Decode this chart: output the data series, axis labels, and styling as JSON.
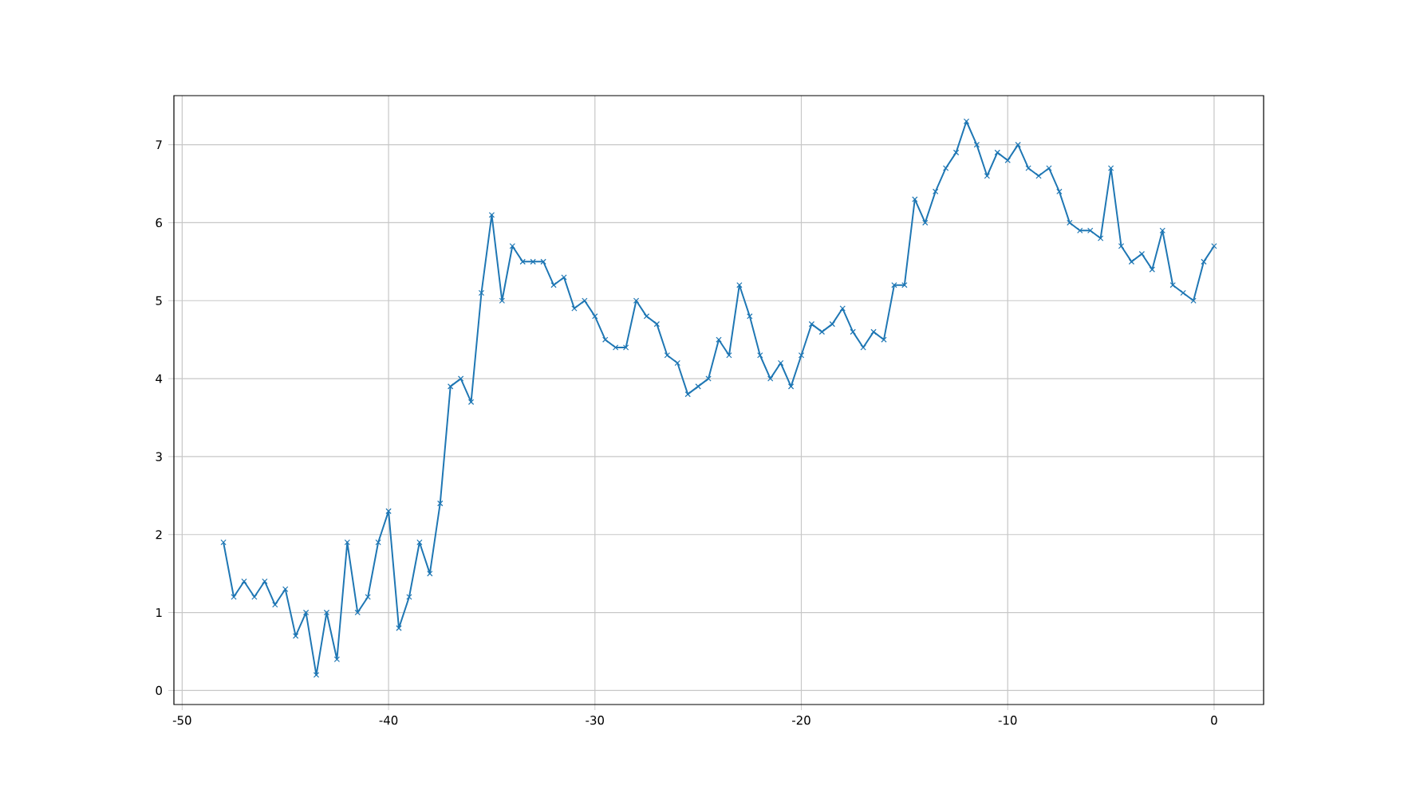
{
  "chart_data": {
    "type": "line",
    "x": [
      -48,
      -47.5,
      -47,
      -46.5,
      -46,
      -45.5,
      -45,
      -44.5,
      -44,
      -43.5,
      -43,
      -42.5,
      -42,
      -41.5,
      -41,
      -40.5,
      -40,
      -39.5,
      -39,
      -38.5,
      -38,
      -37.5,
      -37,
      -36.5,
      -36,
      -35.5,
      -35,
      -34.5,
      -34,
      -33.5,
      -33,
      -32.5,
      -32,
      -31.5,
      -31,
      -30.5,
      -30,
      -29.5,
      -29,
      -28.5,
      -28,
      -27.5,
      -27,
      -26.5,
      -26,
      -25.5,
      -25,
      -24.5,
      -24,
      -23.5,
      -23,
      -22.5,
      -22,
      -21.5,
      -21,
      -20.5,
      -20,
      -19.5,
      -19,
      -18.5,
      -18,
      -17.5,
      -17,
      -16.5,
      -16,
      -15.5,
      -15,
      -14.5,
      -14,
      -13.5,
      -13,
      -12.5,
      -12,
      -11.5,
      -11,
      -10.5,
      -10,
      -9.5,
      -9,
      -8.5,
      -8,
      -7.5,
      -7,
      -6.5,
      -6,
      -5.5,
      -5,
      -4.5,
      -4,
      -3.5,
      -3,
      -2.5,
      -2,
      -1.5,
      -1,
      -0.5,
      0
    ],
    "series": [
      {
        "color": "#1f77b4",
        "values": [
          1.9,
          1.2,
          1.4,
          1.2,
          1.4,
          1.1,
          1.3,
          0.7,
          1.0,
          0.2,
          1.0,
          0.4,
          1.9,
          1.0,
          1.2,
          1.9,
          2.3,
          0.8,
          1.2,
          1.9,
          1.5,
          2.4,
          3.9,
          4.0,
          3.7,
          5.1,
          6.1,
          5.0,
          5.7,
          5.5,
          5.5,
          5.5,
          5.2,
          5.3,
          4.9,
          5.0,
          4.8,
          4.5,
          4.4,
          4.4,
          5.0,
          4.8,
          4.7,
          4.3,
          4.2,
          3.8,
          3.9,
          4.0,
          4.5,
          4.3,
          5.2,
          4.8,
          4.3,
          4.0,
          4.2,
          3.9,
          4.3,
          4.7,
          4.6,
          4.7,
          4.9,
          4.6,
          4.4,
          4.6,
          4.5,
          5.2,
          5.2,
          6.3,
          6.0,
          6.4,
          6.7,
          6.9,
          7.3,
          7.0,
          6.6,
          6.9,
          6.8,
          7.0,
          6.7,
          6.6,
          6.7,
          6.4,
          6.0,
          5.9,
          5.9,
          5.8,
          6.7,
          5.7,
          5.5,
          5.6,
          5.4,
          5.9,
          5.2,
          5.1,
          5.0,
          5.5,
          5.7
        ]
      }
    ],
    "xlim": [
      -50.4,
      2.4
    ],
    "ylim": [
      -0.18,
      7.63
    ],
    "xticks": [
      -50,
      -40,
      -30,
      -20,
      -10,
      0
    ],
    "yticks": [
      0,
      1,
      2,
      3,
      4,
      5,
      6,
      7
    ],
    "grid": true,
    "marker": "cross",
    "line_style": "solid"
  }
}
